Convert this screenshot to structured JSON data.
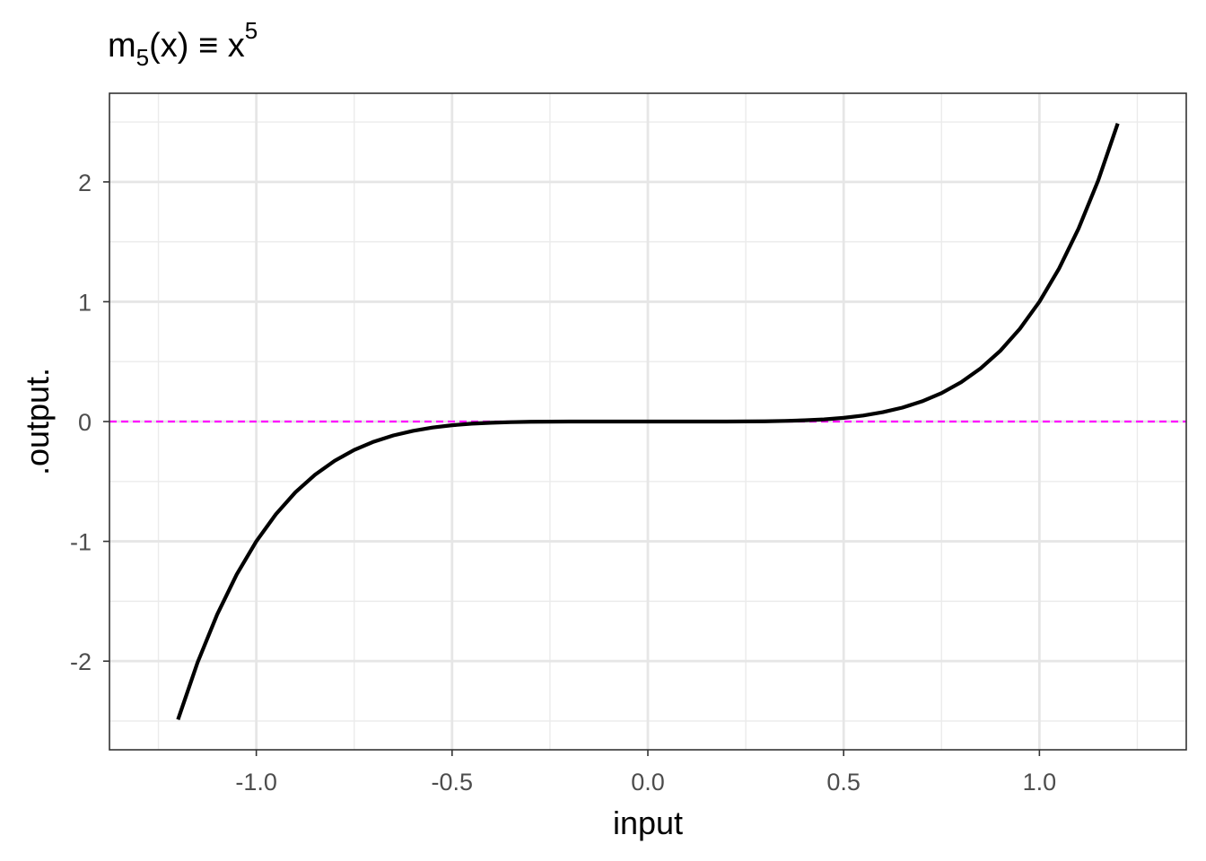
{
  "chart_data": {
    "type": "line",
    "title": {
      "base": "m",
      "subscript": "5",
      "middle": "(x) ≡ x",
      "superscript": "5"
    },
    "xlabel": "input",
    "ylabel": ".output.",
    "xlim": [
      -1.375,
      1.375
    ],
    "ylim": [
      -2.74,
      2.74
    ],
    "x_ticks": [
      {
        "value": -1.0,
        "label": "-1.0"
      },
      {
        "value": -0.5,
        "label": "-0.5"
      },
      {
        "value": 0.0,
        "label": "0.0"
      },
      {
        "value": 0.5,
        "label": "0.5"
      },
      {
        "value": 1.0,
        "label": "1.0"
      }
    ],
    "y_ticks": [
      {
        "value": -2,
        "label": "-2"
      },
      {
        "value": -1,
        "label": "-1"
      },
      {
        "value": 0,
        "label": "0"
      },
      {
        "value": 1,
        "label": "1"
      },
      {
        "value": 2,
        "label": "2"
      }
    ],
    "x_minor_ticks": [
      -1.25,
      -0.75,
      -0.25,
      0.25,
      0.75,
      1.25
    ],
    "y_minor_ticks": [
      -2.5,
      -1.5,
      -0.5,
      0.5,
      1.5,
      2.5
    ],
    "grid": true,
    "series": [
      {
        "color": "#000000",
        "style": "solid",
        "x": [
          -1.2,
          -1.15,
          -1.1,
          -1.05,
          -1.0,
          -0.95,
          -0.9,
          -0.85,
          -0.8,
          -0.75,
          -0.7,
          -0.65,
          -0.6,
          -0.55,
          -0.5,
          -0.45,
          -0.4,
          -0.35,
          -0.3,
          -0.25,
          -0.2,
          -0.15,
          -0.1,
          -0.05,
          0.0,
          0.05,
          0.1,
          0.15,
          0.2,
          0.25,
          0.3,
          0.35,
          0.4,
          0.45,
          0.5,
          0.55,
          0.6,
          0.65,
          0.7,
          0.75,
          0.8,
          0.85,
          0.9,
          0.95,
          1.0,
          1.05,
          1.1,
          1.15,
          1.2
        ],
        "y": [
          -2.488,
          -2.011,
          -1.611,
          -1.276,
          -1.0,
          -0.774,
          -0.59,
          -0.444,
          -0.328,
          -0.237,
          -0.168,
          -0.116,
          -0.078,
          -0.05,
          -0.031,
          -0.018,
          -0.01,
          -0.005,
          -0.002,
          -0.001,
          0.0,
          0.0,
          0.0,
          0.0,
          0.0,
          0.0,
          0.0,
          0.0,
          0.0,
          0.001,
          0.002,
          0.005,
          0.01,
          0.018,
          0.031,
          0.05,
          0.078,
          0.116,
          0.168,
          0.237,
          0.328,
          0.444,
          0.59,
          0.774,
          1.0,
          1.276,
          1.611,
          2.011,
          2.488
        ]
      }
    ],
    "reference_line": {
      "orientation": "horizontal",
      "y": 0,
      "color": "#ff00ff",
      "style": "dashed"
    }
  }
}
